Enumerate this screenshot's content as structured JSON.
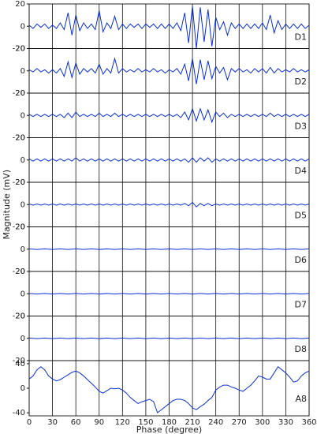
{
  "chart_data": [
    {
      "type": "line",
      "label": "D1",
      "color": "#0a2fd6",
      "xlim": [
        0,
        360
      ],
      "ylim": [
        -20,
        20
      ],
      "yticks": [
        -20,
        0,
        20
      ],
      "x": [
        0,
        5,
        10,
        15,
        20,
        25,
        30,
        35,
        40,
        45,
        50,
        55,
        60,
        65,
        70,
        75,
        80,
        85,
        90,
        95,
        100,
        105,
        110,
        115,
        120,
        125,
        130,
        135,
        140,
        145,
        150,
        155,
        160,
        165,
        170,
        175,
        180,
        185,
        190,
        195,
        200,
        205,
        210,
        215,
        220,
        225,
        230,
        235,
        240,
        245,
        250,
        255,
        260,
        265,
        270,
        275,
        280,
        285,
        290,
        295,
        300,
        305,
        310,
        315,
        320,
        325,
        330,
        335,
        340,
        345,
        350,
        355,
        360
      ],
      "values": [
        1,
        -2,
        2,
        -1,
        2,
        -2,
        1,
        -2,
        3,
        -3,
        12,
        -8,
        10,
        -4,
        3,
        -2,
        2,
        -3,
        14,
        -5,
        3,
        -2,
        9,
        -3,
        2,
        -2,
        2,
        -1,
        2,
        -2,
        2,
        -1,
        2,
        -2,
        2,
        -2,
        2,
        -2,
        3,
        -4,
        12,
        -15,
        18,
        -20,
        17,
        -14,
        15,
        -18,
        8,
        -3,
        4,
        -8,
        3,
        -2,
        2,
        -2,
        2,
        -2,
        2,
        -2,
        3,
        -3,
        10,
        -6,
        5,
        -3,
        2,
        -2,
        2,
        -2,
        2,
        -2,
        1
      ]
    },
    {
      "type": "line",
      "label": "D2",
      "color": "#0a2fd6",
      "xlim": [
        0,
        360
      ],
      "ylim": [
        -20,
        20
      ],
      "yticks": [
        -20,
        0,
        20
      ],
      "x": [
        0,
        5,
        10,
        15,
        20,
        25,
        30,
        35,
        40,
        45,
        50,
        55,
        60,
        65,
        70,
        75,
        80,
        85,
        90,
        95,
        100,
        105,
        110,
        115,
        120,
        125,
        130,
        135,
        140,
        145,
        150,
        155,
        160,
        165,
        170,
        175,
        180,
        185,
        190,
        195,
        200,
        205,
        210,
        215,
        220,
        225,
        230,
        235,
        240,
        245,
        250,
        255,
        260,
        265,
        270,
        275,
        280,
        285,
        290,
        295,
        300,
        305,
        310,
        315,
        320,
        325,
        330,
        335,
        340,
        345,
        350,
        355,
        360
      ],
      "values": [
        1,
        -1,
        2,
        -1,
        1,
        -2,
        1,
        -2,
        2,
        -5,
        8,
        -6,
        7,
        -3,
        2,
        -1,
        2,
        -2,
        6,
        -3,
        2,
        -2,
        11,
        -2,
        2,
        -1,
        1,
        -1,
        2,
        -1,
        1,
        -1,
        2,
        -1,
        1,
        -2,
        1,
        -1,
        2,
        -3,
        6,
        -9,
        11,
        -12,
        10,
        -8,
        9,
        -7,
        4,
        -2,
        3,
        -8,
        2,
        -1,
        2,
        -1,
        1,
        -2,
        2,
        -1,
        2,
        -2,
        3,
        -2,
        2,
        -1,
        1,
        -1,
        2,
        -1,
        1,
        -1,
        1
      ]
    },
    {
      "type": "line",
      "label": "D3",
      "color": "#0a2fd6",
      "xlim": [
        0,
        360
      ],
      "ylim": [
        -20,
        20
      ],
      "yticks": [
        -20,
        0,
        20
      ],
      "x": [
        0,
        5,
        10,
        15,
        20,
        25,
        30,
        35,
        40,
        45,
        50,
        55,
        60,
        65,
        70,
        75,
        80,
        85,
        90,
        95,
        100,
        105,
        110,
        115,
        120,
        125,
        130,
        135,
        140,
        145,
        150,
        155,
        160,
        165,
        170,
        175,
        180,
        185,
        190,
        195,
        200,
        205,
        210,
        215,
        220,
        225,
        230,
        235,
        240,
        245,
        250,
        255,
        260,
        265,
        270,
        275,
        280,
        285,
        290,
        295,
        300,
        305,
        310,
        315,
        320,
        325,
        330,
        335,
        340,
        345,
        350,
        355,
        360
      ],
      "values": [
        1,
        -1,
        1,
        -1,
        1,
        -1,
        1,
        -1,
        1,
        -2,
        2,
        -2,
        3,
        -1,
        1,
        -1,
        1,
        -1,
        2,
        -1,
        1,
        -1,
        2,
        -1,
        1,
        -1,
        1,
        -1,
        1,
        -1,
        1,
        -1,
        1,
        -1,
        1,
        -1,
        1,
        -1,
        1,
        -2,
        3,
        -4,
        6,
        -5,
        6,
        -4,
        5,
        -6,
        3,
        -1,
        2,
        -2,
        1,
        -1,
        1,
        -1,
        1,
        -1,
        1,
        -1,
        1,
        -1,
        2,
        -1,
        1,
        -1,
        1,
        -1,
        1,
        -1,
        1,
        -1,
        1
      ]
    },
    {
      "type": "line",
      "label": "D4",
      "color": "#0a2fd6",
      "xlim": [
        0,
        360
      ],
      "ylim": [
        -20,
        20
      ],
      "yticks": [
        -20,
        0,
        20
      ],
      "x": [
        0,
        5,
        10,
        15,
        20,
        25,
        30,
        35,
        40,
        45,
        50,
        55,
        60,
        65,
        70,
        75,
        80,
        85,
        90,
        95,
        100,
        105,
        110,
        115,
        120,
        125,
        130,
        135,
        140,
        145,
        150,
        155,
        160,
        165,
        170,
        175,
        180,
        185,
        190,
        195,
        200,
        205,
        210,
        215,
        220,
        225,
        230,
        235,
        240,
        245,
        250,
        255,
        260,
        265,
        270,
        275,
        280,
        285,
        290,
        295,
        300,
        305,
        310,
        315,
        320,
        325,
        330,
        335,
        340,
        345,
        350,
        355,
        360
      ],
      "values": [
        1,
        -1,
        1,
        -1,
        1,
        -1,
        1,
        -1,
        1,
        -1,
        1,
        -1,
        2,
        -1,
        1,
        -1,
        1,
        -1,
        1,
        -1,
        1,
        -1,
        1,
        -1,
        1,
        -1,
        1,
        -1,
        1,
        -1,
        1,
        -1,
        1,
        -1,
        1,
        -1,
        1,
        -1,
        1,
        -1,
        1,
        -2,
        2,
        -2,
        2,
        -1,
        2,
        -2,
        1,
        -1,
        1,
        -1,
        1,
        -1,
        1,
        -1,
        1,
        -1,
        1,
        -1,
        1,
        -1,
        1,
        -1,
        1,
        -1,
        1,
        -1,
        1,
        -1,
        1,
        -1,
        1
      ]
    },
    {
      "type": "line",
      "label": "D5",
      "color": "#0a2fd6",
      "xlim": [
        0,
        360
      ],
      "ylim": [
        -20,
        20
      ],
      "yticks": [
        -20,
        0,
        20
      ],
      "ylabel": "Magnitude (mV)",
      "x": [
        0,
        5,
        10,
        15,
        20,
        25,
        30,
        35,
        40,
        45,
        50,
        55,
        60,
        65,
        70,
        75,
        80,
        85,
        90,
        95,
        100,
        105,
        110,
        115,
        120,
        125,
        130,
        135,
        140,
        145,
        150,
        155,
        160,
        165,
        170,
        175,
        180,
        185,
        190,
        195,
        200,
        205,
        210,
        215,
        220,
        225,
        230,
        235,
        240,
        245,
        250,
        255,
        260,
        265,
        270,
        275,
        280,
        285,
        290,
        295,
        300,
        305,
        310,
        315,
        320,
        325,
        330,
        335,
        340,
        345,
        350,
        355,
        360
      ],
      "values": [
        0.5,
        -0.5,
        0.5,
        -0.5,
        0.5,
        -0.5,
        0.5,
        -0.5,
        0.5,
        -0.5,
        0.5,
        -0.5,
        0.5,
        -0.5,
        0.5,
        -0.5,
        0.5,
        -0.5,
        0.5,
        -0.5,
        0.5,
        -0.5,
        0.5,
        -0.5,
        0.5,
        -0.5,
        0.5,
        -0.5,
        0.5,
        -0.5,
        0.5,
        -0.5,
        0.5,
        -0.5,
        0.5,
        -0.5,
        0.5,
        -0.5,
        0.5,
        -0.5,
        1,
        -1,
        2,
        -2,
        1,
        -1,
        1,
        -1,
        0.5,
        -0.5,
        0.5,
        -0.5,
        0.5,
        -0.5,
        0.5,
        -0.5,
        0.5,
        -0.5,
        0.5,
        -0.5,
        0.5,
        -0.5,
        0.5,
        -0.5,
        0.5,
        -0.5,
        0.5,
        -0.5,
        0.5,
        -0.5,
        0.5,
        -0.5,
        0.5
      ]
    },
    {
      "type": "line",
      "label": "D6",
      "color": "#0a2fd6",
      "xlim": [
        0,
        360
      ],
      "ylim": [
        -20,
        20
      ],
      "yticks": [
        -20,
        0,
        20
      ],
      "x": [
        0,
        10,
        20,
        30,
        40,
        50,
        60,
        70,
        80,
        90,
        100,
        110,
        120,
        130,
        140,
        150,
        160,
        170,
        180,
        190,
        200,
        210,
        220,
        230,
        240,
        250,
        260,
        270,
        280,
        290,
        300,
        310,
        320,
        330,
        340,
        350,
        360
      ],
      "values": [
        0.3,
        -0.3,
        0.3,
        -0.3,
        0.3,
        -0.3,
        0.3,
        -0.3,
        0.3,
        -0.3,
        0.3,
        -0.3,
        0.3,
        -0.3,
        0.3,
        -0.3,
        0.3,
        -0.3,
        0.3,
        -0.3,
        0.3,
        -0.3,
        0.3,
        -0.3,
        0.3,
        -0.3,
        0.3,
        -0.3,
        0.3,
        -0.3,
        0.3,
        -0.3,
        0.3,
        -0.3,
        0.3,
        -0.3,
        0.3
      ]
    },
    {
      "type": "line",
      "label": "D7",
      "color": "#0a2fd6",
      "xlim": [
        0,
        360
      ],
      "ylim": [
        -20,
        20
      ],
      "yticks": [
        -20,
        0,
        20
      ],
      "x": [
        0,
        10,
        20,
        30,
        40,
        50,
        60,
        70,
        80,
        90,
        100,
        110,
        120,
        130,
        140,
        150,
        160,
        170,
        180,
        190,
        200,
        210,
        220,
        230,
        240,
        250,
        260,
        270,
        280,
        290,
        300,
        310,
        320,
        330,
        340,
        350,
        360
      ],
      "values": [
        0.3,
        -0.3,
        0.3,
        -0.3,
        0.3,
        -0.3,
        0.3,
        -0.3,
        0.3,
        -0.3,
        0.3,
        -0.3,
        0.3,
        -0.3,
        0.3,
        -0.3,
        0.3,
        -0.3,
        0.3,
        -0.3,
        0.3,
        -0.3,
        0.3,
        -0.3,
        0.3,
        -0.3,
        0.3,
        -0.3,
        0.3,
        -0.3,
        0.3,
        -0.3,
        0.3,
        -0.3,
        0.3,
        -0.3,
        0.3
      ]
    },
    {
      "type": "line",
      "label": "D8",
      "color": "#0a2fd6",
      "xlim": [
        0,
        360
      ],
      "ylim": [
        -20,
        20
      ],
      "yticks": [
        -20,
        0,
        20
      ],
      "x": [
        0,
        10,
        20,
        30,
        40,
        50,
        60,
        70,
        80,
        90,
        100,
        110,
        120,
        130,
        140,
        150,
        160,
        170,
        180,
        190,
        200,
        210,
        220,
        230,
        240,
        250,
        260,
        270,
        280,
        290,
        300,
        310,
        320,
        330,
        340,
        350,
        360
      ],
      "values": [
        0.3,
        -0.3,
        0.3,
        -0.3,
        0.3,
        -0.3,
        0.3,
        -0.3,
        0.3,
        -0.3,
        0.3,
        -0.3,
        0.3,
        -0.3,
        0.3,
        -0.3,
        0.3,
        -0.3,
        0.3,
        -0.3,
        0.3,
        -0.3,
        0.3,
        -0.3,
        0.3,
        -0.3,
        0.3,
        -0.3,
        0.3,
        -0.3,
        0.3,
        -0.3,
        0.3,
        -0.3,
        0.3,
        -0.3,
        0.3
      ]
    },
    {
      "type": "line",
      "label": "A8",
      "color": "#0a2fd6",
      "xlim": [
        0,
        360
      ],
      "ylim": [
        -45,
        45
      ],
      "yticks": [
        -40,
        0,
        40
      ],
      "xticks": [
        0,
        30,
        60,
        90,
        120,
        150,
        180,
        210,
        240,
        270,
        300,
        330,
        360
      ],
      "xlabel": "Phase (degree)",
      "x": [
        0,
        5,
        10,
        15,
        20,
        25,
        30,
        35,
        40,
        45,
        50,
        55,
        60,
        65,
        70,
        75,
        80,
        85,
        90,
        95,
        100,
        105,
        110,
        115,
        120,
        125,
        130,
        135,
        140,
        145,
        150,
        155,
        160,
        165,
        170,
        175,
        180,
        185,
        190,
        195,
        200,
        205,
        210,
        215,
        220,
        225,
        230,
        235,
        240,
        245,
        250,
        255,
        260,
        265,
        270,
        275,
        280,
        285,
        290,
        295,
        300,
        305,
        310,
        315,
        320,
        325,
        330,
        335,
        340,
        345,
        350,
        355,
        360
      ],
      "values": [
        15,
        20,
        30,
        35,
        30,
        20,
        15,
        12,
        14,
        18,
        22,
        26,
        28,
        25,
        20,
        14,
        8,
        2,
        -5,
        -8,
        -4,
        0,
        -1,
        0,
        -3,
        -8,
        -15,
        -20,
        -25,
        -22,
        -20,
        -18,
        -22,
        -40,
        -35,
        -30,
        -25,
        -20,
        -18,
        -18,
        -20,
        -25,
        -32,
        -35,
        -30,
        -26,
        -20,
        -15,
        -3,
        2,
        5,
        5,
        2,
        0,
        -3,
        -5,
        0,
        5,
        12,
        20,
        18,
        15,
        15,
        25,
        35,
        30,
        25,
        18,
        10,
        12,
        20,
        25,
        28
      ]
    }
  ]
}
